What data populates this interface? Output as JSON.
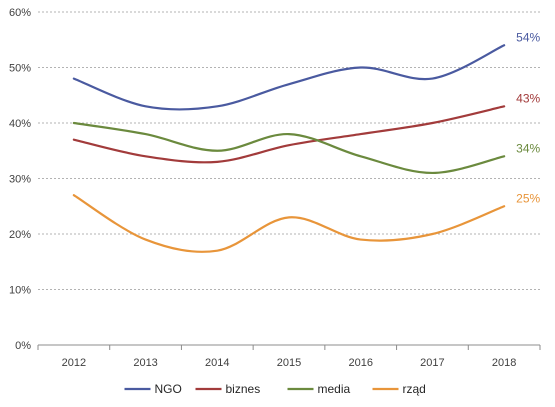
{
  "chart_data": {
    "type": "line",
    "title": "",
    "xlabel": "",
    "ylabel": "",
    "categories": [
      "2012",
      "2013",
      "2014",
      "2015",
      "2016",
      "2017",
      "2018"
    ],
    "ylim": [
      0,
      60
    ],
    "yticks": [
      0,
      10,
      20,
      30,
      40,
      50,
      60
    ],
    "ytick_format": "%",
    "grid": "horizontal dashed",
    "legend": "bottom",
    "series": [
      {
        "name": "NGO",
        "color": "#4a5aa0",
        "values": [
          48,
          43,
          43,
          47,
          50,
          48,
          54
        ],
        "end_label": "54%"
      },
      {
        "name": "biznes",
        "color": "#a23b3b",
        "values": [
          37,
          34,
          33,
          36,
          38,
          40,
          43
        ],
        "end_label": "43%"
      },
      {
        "name": "media",
        "color": "#6b8a3e",
        "values": [
          40,
          38,
          35,
          38,
          34,
          31,
          34
        ],
        "end_label": "34%"
      },
      {
        "name": "rząd",
        "color": "#e8953a",
        "values": [
          27,
          19,
          17,
          23,
          19,
          20,
          25
        ],
        "end_label": "25%"
      }
    ]
  }
}
